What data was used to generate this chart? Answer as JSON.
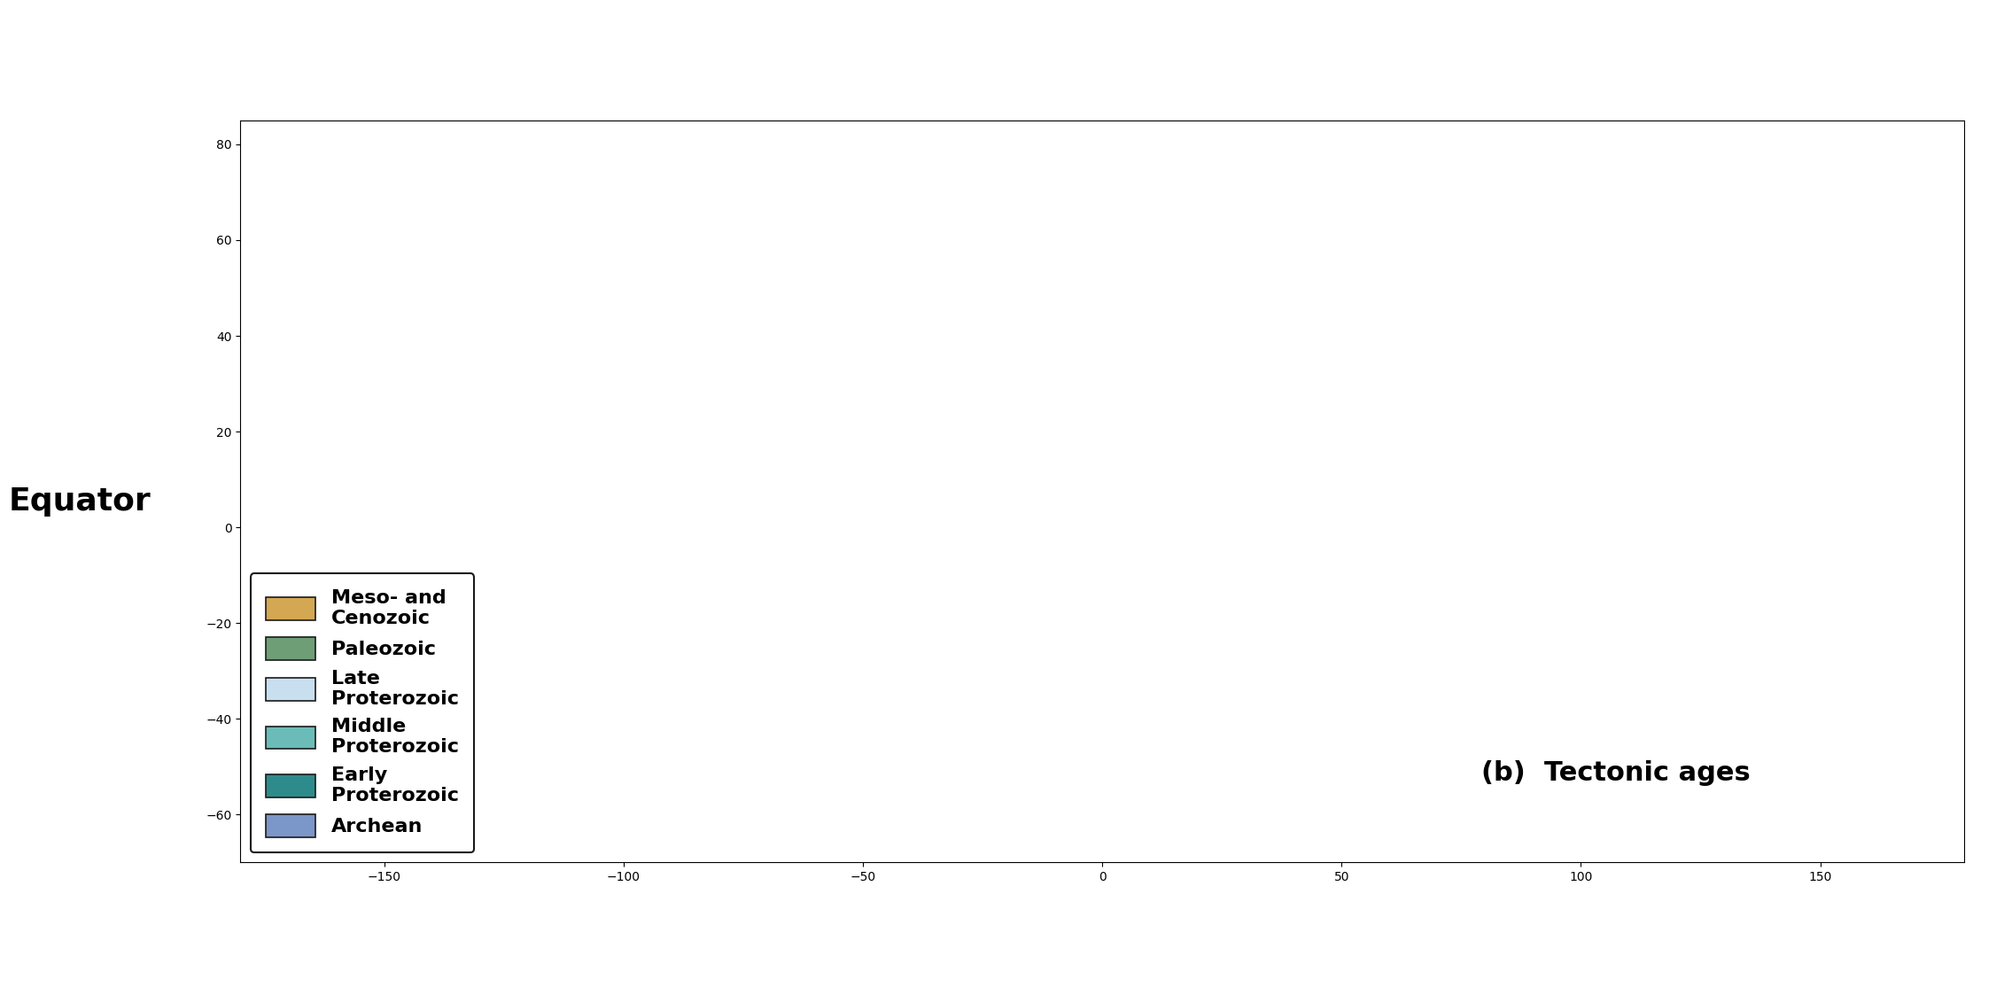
{
  "title": "(b)  Tectonic ages",
  "title_fontsize": 22,
  "title_fontweight": "bold",
  "equator_label": "Equator",
  "equator_fontsize": 26,
  "equator_fontweight": "bold",
  "legend_entries": [
    {
      "label": "Meso- and\nCenozoic",
      "color": "#D4A853"
    },
    {
      "label": "Paleozoic",
      "color": "#6E9E76"
    },
    {
      "label": "Late\nProterozoic",
      "color": "#C8DFF0"
    },
    {
      "label": "Middle\nProterozoic",
      "color": "#6BBCB8"
    },
    {
      "label": "Early\nProterozoic",
      "color": "#2E8B8B"
    },
    {
      "label": "Archean",
      "color": "#7B96C8"
    }
  ],
  "bg_color": "#FFFFFF",
  "ocean_color": "#FFFFFF",
  "border_color": "#1A1A1A",
  "tick_color": "#1A1A1A",
  "legend_fontsize": 16,
  "legend_fontweight": "bold"
}
